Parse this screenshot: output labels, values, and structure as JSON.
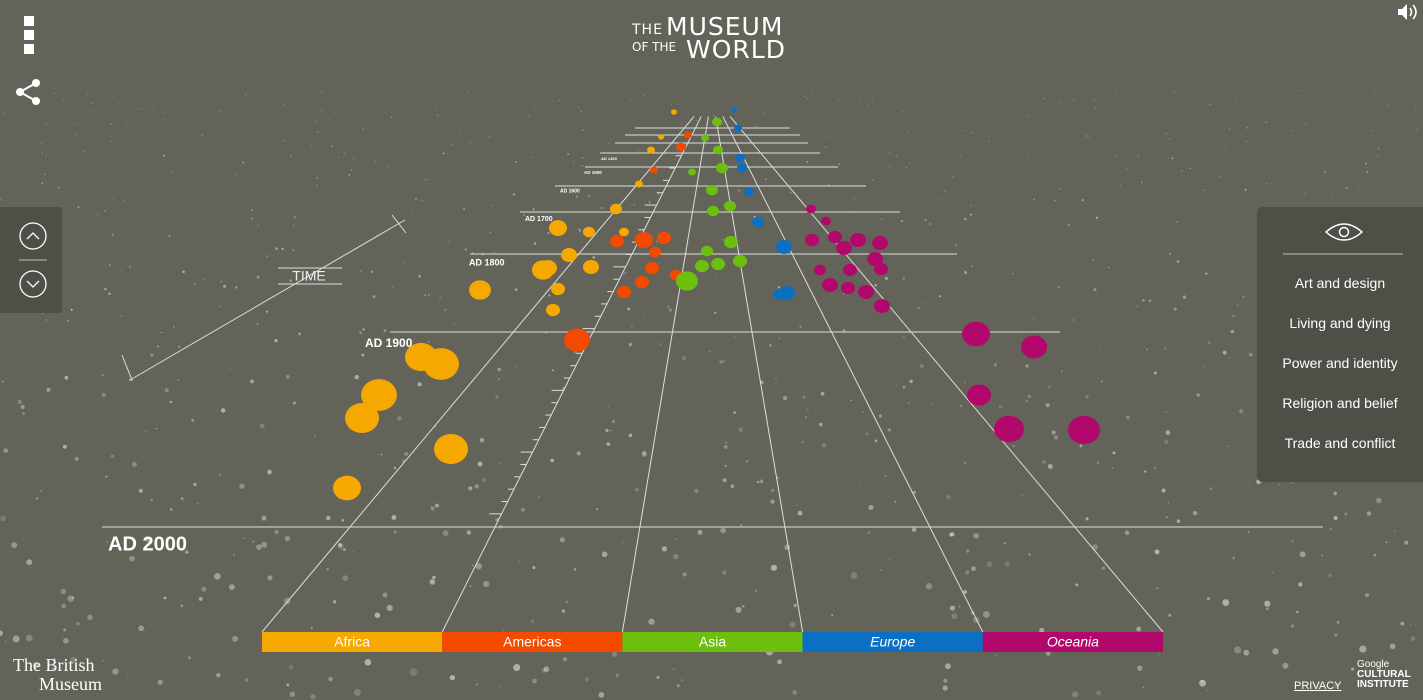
{
  "header": {
    "title": [
      "THE",
      "MUSEUM",
      "OF THE",
      "WORLD"
    ]
  },
  "timeline": {
    "axis_label": "TIME",
    "dates": [
      "AD 2000",
      "AD 1900",
      "AD 1800",
      "AD 1700",
      "AD 1600",
      "AD 1500",
      "AD 1400"
    ]
  },
  "regions": [
    {
      "label": "Africa",
      "color": "#f5a800"
    },
    {
      "label": "Americas",
      "color": "#f44a00"
    },
    {
      "label": "Asia",
      "color": "#6cbe0f"
    },
    {
      "label": "Europe",
      "color": "#0b6fc4"
    },
    {
      "label": "Oceania",
      "color": "#b3086b"
    }
  ],
  "filters": [
    "Art and design",
    "Living and dying",
    "Power and identity",
    "Religion and belief",
    "Trade and conflict"
  ],
  "footer": {
    "museum": [
      "The British",
      "Museum"
    ],
    "privacy": "PRIVACY",
    "partner": [
      "Google",
      "CULTURAL",
      "INSTITUTE"
    ]
  }
}
